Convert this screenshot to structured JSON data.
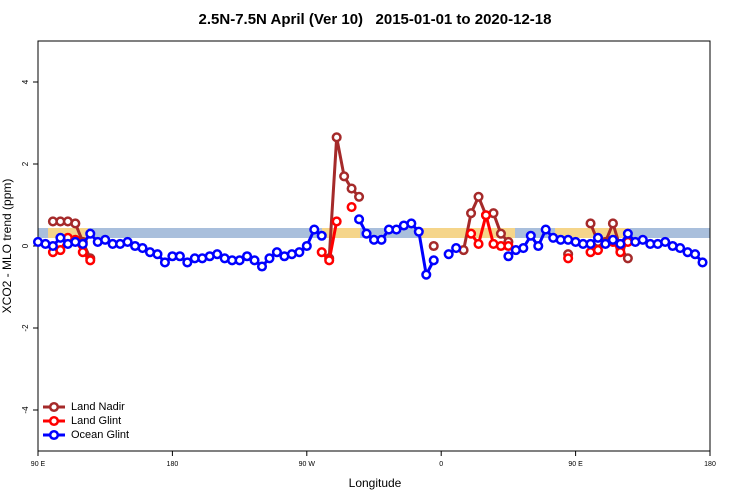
{
  "chart_data": {
    "type": "line",
    "title": "2.5N-7.5N April (Ver 10)   2015-01-01 to 2020-12-18",
    "x_label": "Longitude",
    "y_label": "XCO2 - MLO trend (ppm)",
    "xlim": [
      90,
      540
    ],
    "xticks": [
      {
        "value": 90,
        "label": "90 E"
      },
      {
        "value": 180,
        "label": "180"
      },
      {
        "value": 270,
        "label": "90 W"
      },
      {
        "value": 360,
        "label": "0"
      },
      {
        "value": 450,
        "label": "90 E"
      },
      {
        "value": 540,
        "label": "180"
      }
    ],
    "ylim": [
      -5,
      5
    ],
    "yticks": [
      -4,
      -2,
      0,
      2,
      4
    ],
    "legend": "bottom-left",
    "x": [
      90,
      95,
      100,
      105,
      110,
      115,
      120,
      125,
      130,
      135,
      140,
      145,
      150,
      155,
      160,
      165,
      170,
      175,
      180,
      185,
      190,
      195,
      200,
      205,
      210,
      215,
      220,
      225,
      230,
      235,
      240,
      245,
      250,
      255,
      260,
      265,
      270,
      275,
      280,
      285,
      290,
      295,
      300,
      305,
      310,
      315,
      320,
      325,
      330,
      335,
      340,
      345,
      350,
      355,
      360,
      365,
      370,
      375,
      380,
      385,
      390,
      395,
      400,
      405,
      410,
      415,
      420,
      425,
      430,
      435,
      440,
      445,
      450,
      455,
      460,
      465,
      470,
      475,
      480,
      485,
      490,
      495,
      500,
      505,
      510,
      515,
      520,
      525,
      530,
      535,
      540
    ],
    "series": [
      {
        "name": "Land Nadir",
        "color": "#a52a2a",
        "values": [
          null,
          null,
          0.6,
          0.6,
          0.6,
          0.55,
          0.1,
          -0.3,
          null,
          null,
          null,
          null,
          null,
          null,
          null,
          null,
          null,
          null,
          null,
          null,
          null,
          null,
          null,
          null,
          null,
          null,
          null,
          null,
          null,
          null,
          null,
          null,
          null,
          null,
          null,
          null,
          null,
          null,
          null,
          -0.3,
          2.65,
          1.7,
          1.4,
          1.2,
          null,
          null,
          null,
          null,
          null,
          null,
          null,
          null,
          null,
          0,
          null,
          null,
          null,
          -0.1,
          0.8,
          1.2,
          0.75,
          0.8,
          0.3,
          0.1,
          null,
          null,
          null,
          null,
          null,
          null,
          null,
          -0.2,
          null,
          null,
          0.55,
          0.1,
          0.1,
          0.55,
          -0.05,
          -0.3,
          null,
          null,
          null,
          null,
          null,
          null,
          null,
          null,
          null,
          null,
          null
        ]
      },
      {
        "name": "Land Glint",
        "color": "#ff0000",
        "values": [
          null,
          null,
          -0.15,
          -0.1,
          0.2,
          0.15,
          -0.15,
          -0.35,
          null,
          null,
          null,
          null,
          null,
          null,
          null,
          null,
          null,
          null,
          null,
          null,
          null,
          null,
          null,
          null,
          null,
          null,
          null,
          null,
          null,
          null,
          null,
          null,
          null,
          null,
          null,
          null,
          null,
          null,
          -0.15,
          -0.35,
          0.6,
          null,
          0.95,
          null,
          null,
          null,
          null,
          null,
          null,
          null,
          null,
          null,
          null,
          null,
          null,
          null,
          null,
          null,
          0.3,
          0.05,
          0.75,
          0.05,
          0,
          0,
          null,
          null,
          null,
          null,
          null,
          null,
          null,
          -0.3,
          null,
          null,
          -0.15,
          -0.1,
          null,
          0.1,
          -0.15,
          0.1,
          null,
          null,
          null,
          null,
          null,
          null,
          null,
          null,
          null,
          null,
          null
        ]
      },
      {
        "name": "Ocean Glint",
        "color": "#0000ff",
        "values": [
          0.1,
          0.05,
          0,
          0.2,
          0.05,
          0.1,
          0.05,
          0.3,
          0.1,
          0.15,
          0.05,
          0.05,
          0.1,
          0,
          -0.05,
          -0.15,
          -0.2,
          -0.4,
          -0.25,
          -0.25,
          -0.4,
          -0.3,
          -0.3,
          -0.25,
          -0.2,
          -0.3,
          -0.35,
          -0.35,
          -0.25,
          -0.35,
          -0.5,
          -0.3,
          -0.15,
          -0.25,
          -0.2,
          -0.15,
          0,
          0.4,
          0.25,
          null,
          null,
          null,
          null,
          0.65,
          0.3,
          0.15,
          0.15,
          0.4,
          0.4,
          0.5,
          0.55,
          0.35,
          -0.7,
          -0.35,
          null,
          -0.2,
          -0.05,
          null,
          null,
          null,
          null,
          null,
          null,
          -0.25,
          -0.1,
          -0.05,
          0.25,
          0,
          0.4,
          0.2,
          0.15,
          0.15,
          0.1,
          0.05,
          0.05,
          0.2,
          0.05,
          0.15,
          0.05,
          0.3,
          0.1,
          0.15,
          0.05,
          0.05,
          0.1,
          0,
          -0.05,
          -0.15,
          -0.2,
          -0.4,
          null
        ]
      }
    ]
  }
}
